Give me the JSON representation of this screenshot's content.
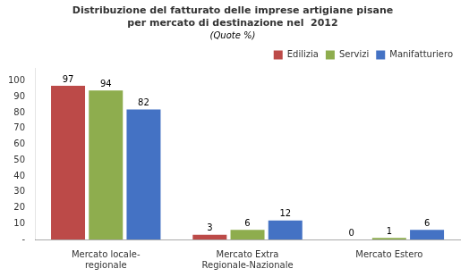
{
  "chart_data": {
    "type": "bar",
    "title": "Distribuzione del fatturato delle imprese artigiane pisane\nper mercato di destinazione nel  2012",
    "subtitle": "(Quote %)",
    "categories": [
      "Mercato locale-\nregionale",
      "Mercato Extra\nRegionale-Nazionale",
      "Mercato Estero"
    ],
    "series": [
      {
        "name": "Edilizia",
        "color": "#BC4A48",
        "values": [
          97,
          3,
          0
        ]
      },
      {
        "name": "Servizi",
        "color": "#8EAD4E",
        "values": [
          94,
          6,
          1
        ]
      },
      {
        "name": "Manifatturiero",
        "color": "#4472C4",
        "values": [
          82,
          12,
          6
        ]
      }
    ],
    "ylim": [
      0,
      108
    ],
    "yticks": [
      {
        "value": 0,
        "label": "-"
      },
      10,
      20,
      30,
      40,
      50,
      60,
      70,
      80,
      90,
      100
    ],
    "data_labels": true,
    "legend": "upper right",
    "grid": false
  }
}
